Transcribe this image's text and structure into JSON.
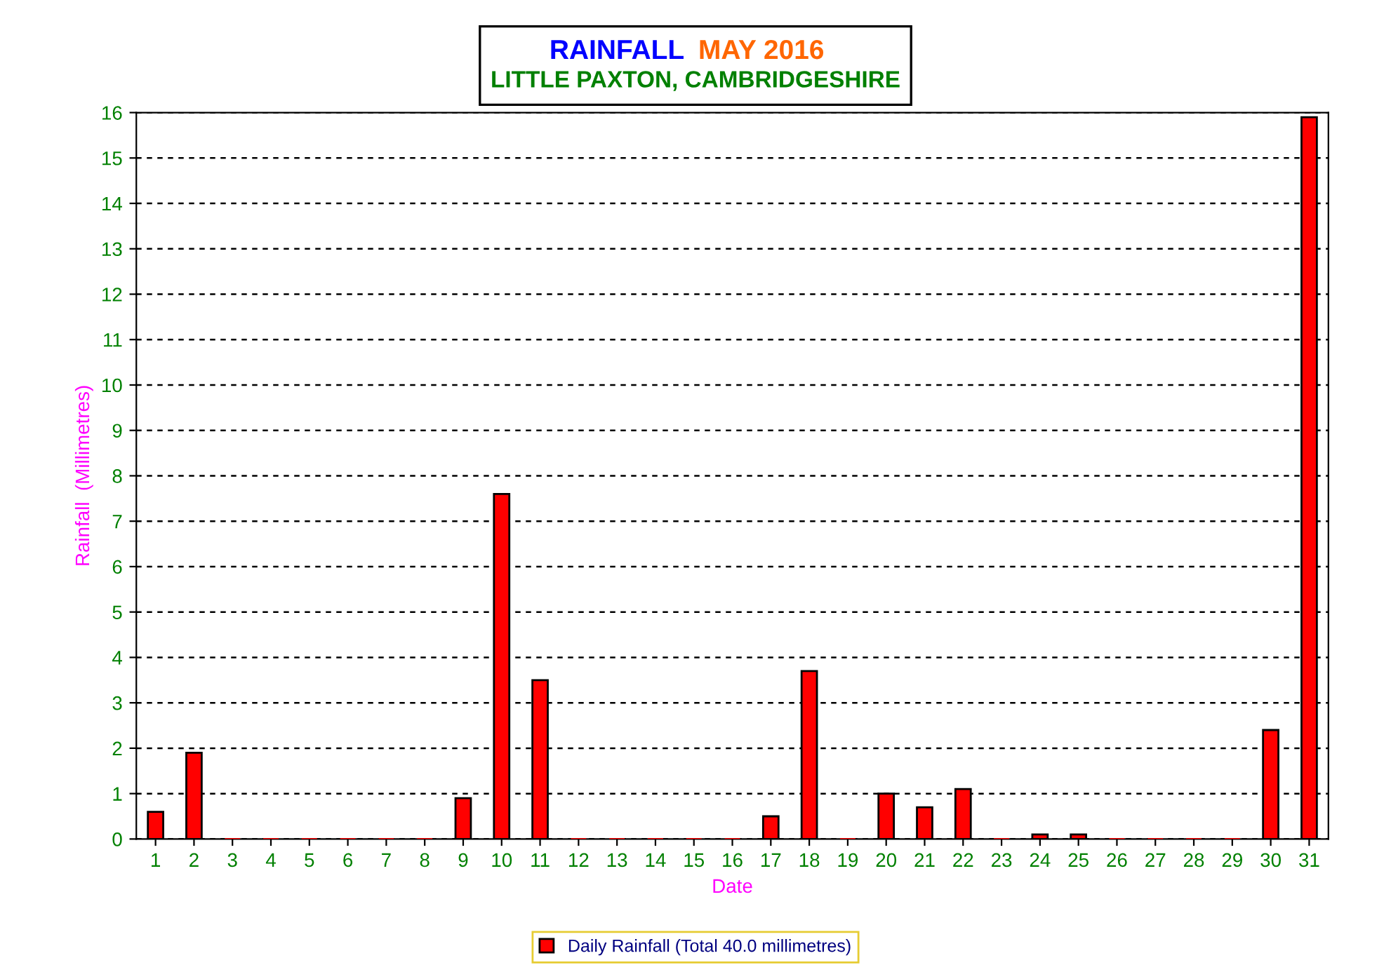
{
  "chart_data": {
    "type": "bar",
    "title": "RAINFALL",
    "subtitle": "LITTLE PAXTON, CAMBRIDGESHIRE",
    "annotations": [
      "MAY 2016"
    ],
    "xlabel": "Date",
    "ylabel": "Rainfall  (Millimetres)",
    "categories": [
      "1",
      "2",
      "3",
      "4",
      "5",
      "6",
      "7",
      "8",
      "9",
      "10",
      "11",
      "12",
      "13",
      "14",
      "15",
      "16",
      "17",
      "18",
      "19",
      "20",
      "21",
      "22",
      "23",
      "24",
      "25",
      "26",
      "27",
      "28",
      "29",
      "30",
      "31"
    ],
    "series": [
      {
        "name": "Daily Rainfall (Total 40.0 millimetres)",
        "color": "#ff0000",
        "values": [
          0.6,
          1.9,
          0,
          0,
          0,
          0,
          0,
          0,
          0.9,
          7.6,
          3.5,
          0,
          0,
          0,
          0,
          0,
          0.5,
          3.7,
          0,
          1.0,
          0.7,
          1.1,
          0,
          0.1,
          0.1,
          0,
          0,
          0,
          0,
          2.4,
          15.9
        ]
      }
    ],
    "ylim": [
      0,
      16
    ],
    "yticks": [
      0,
      1,
      2,
      3,
      4,
      5,
      6,
      7,
      8,
      9,
      10,
      11,
      12,
      13,
      14,
      15,
      16
    ],
    "grid": "y",
    "legend": "bottom"
  }
}
